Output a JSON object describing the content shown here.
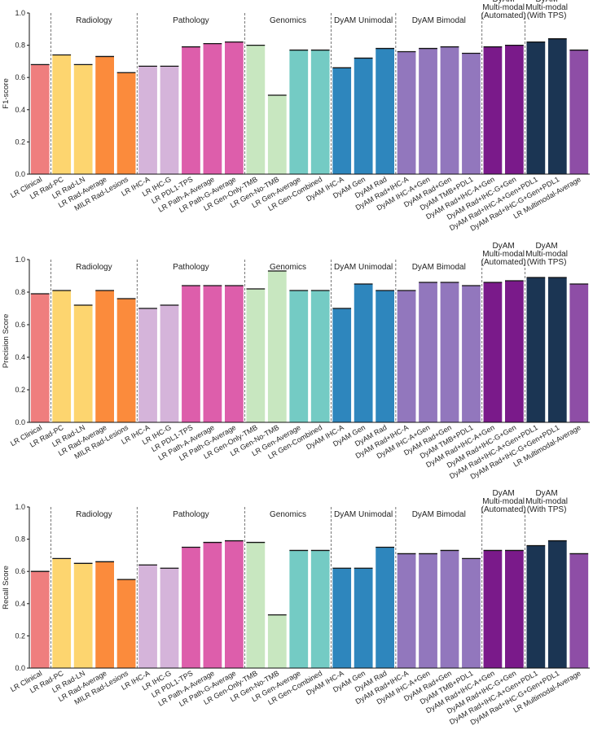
{
  "chart_data": [
    {
      "type": "bar",
      "ylabel": "F1-score",
      "ylim": [
        0,
        1.0
      ],
      "yticks": [
        "0.0",
        "0.2",
        "0.4",
        "0.6",
        "0.8",
        "1.0"
      ],
      "grid": false,
      "categories": [
        "LR Clinical",
        "LR Rad-PC",
        "LR Rad-LN",
        "LR Rad-Average",
        "MILR Rad-Lesions",
        "LR IHC-A",
        "LR IHC-G",
        "LR PDL1-TPS",
        "LR Path-A-Average",
        "LR Path-G-Average",
        "LR Gen-Only-TMB",
        "LR Gen-No-TMB",
        "LR Gen-Average",
        "LR Gen-Combined",
        "DyAM IHC-A",
        "DyAM Gen",
        "DyAM Rad",
        "DyAM Rad+IHC-A",
        "DyAM IHC-A+Gen",
        "DyAM Rad+Gen",
        "DyAM TMB+PDL1",
        "DyAM Rad+IHC-A+Gen",
        "DyAM Rad+IHC-G+Gen",
        "DyAM Rad+IHC-A+Gen+PDL1",
        "DyAM Rad+IHC-G+Gen+PDL1",
        "LR Multimodal-Average"
      ],
      "values": [
        0.68,
        0.74,
        0.68,
        0.73,
        0.63,
        0.67,
        0.67,
        0.79,
        0.81,
        0.82,
        0.8,
        0.49,
        0.77,
        0.77,
        0.66,
        0.72,
        0.78,
        0.76,
        0.78,
        0.79,
        0.75,
        0.79,
        0.8,
        0.82,
        0.84,
        0.77
      ]
    },
    {
      "type": "bar",
      "ylabel": "Precision Score",
      "ylim": [
        0,
        1.0
      ],
      "yticks": [
        "0.0",
        "0.2",
        "0.4",
        "0.6",
        "0.8",
        "1.0"
      ],
      "grid": false,
      "categories": [
        "LR Clinical",
        "LR Rad-PC",
        "LR Rad-LN",
        "LR Rad-Average",
        "MILR Rad-Lesions",
        "LR IHC-A",
        "LR IHC-G",
        "LR PDL1-TPS",
        "LR Path-A-Average",
        "LR Path-G-Average",
        "LR Gen-Only-TMB",
        "LR Gen-No-TMB",
        "LR Gen-Average",
        "LR Gen-Combined",
        "DyAM IHC-A",
        "DyAM Gen",
        "DyAM Rad",
        "DyAM Rad+IHC-A",
        "DyAM IHC-A+Gen",
        "DyAM Rad+Gen",
        "DyAM TMB+PDL1",
        "DyAM Rad+IHC-A+Gen",
        "DyAM Rad+IHC-G+Gen",
        "DyAM Rad+IHC-A+Gen+PDL1",
        "DyAM Rad+IHC-G+Gen+PDL1",
        "LR Multimodal-Average"
      ],
      "values": [
        0.79,
        0.81,
        0.72,
        0.81,
        0.76,
        0.7,
        0.72,
        0.84,
        0.84,
        0.84,
        0.82,
        0.93,
        0.81,
        0.81,
        0.7,
        0.85,
        0.81,
        0.81,
        0.86,
        0.86,
        0.84,
        0.86,
        0.87,
        0.89,
        0.89,
        0.85
      ]
    },
    {
      "type": "bar",
      "ylabel": "Recall Score",
      "ylim": [
        0,
        1.0
      ],
      "yticks": [
        "0.0",
        "0.2",
        "0.4",
        "0.6",
        "0.8",
        "1.0"
      ],
      "grid": false,
      "categories": [
        "LR Clinical",
        "LR Rad-PC",
        "LR Rad-LN",
        "LR Rad-Average",
        "MILR Rad-Lesions",
        "LR IHC-A",
        "LR IHC-G",
        "LR PDL1-TPS",
        "LR Path-A-Average",
        "LR Path-G-Average",
        "LR Gen-Only-TMB",
        "LR Gen-No-TMB",
        "LR Gen-Average",
        "LR Gen-Combined",
        "DyAM IHC-A",
        "DyAM Gen",
        "DyAM Rad",
        "DyAM Rad+IHC-A",
        "DyAM IHC-A+Gen",
        "DyAM Rad+Gen",
        "DyAM TMB+PDL1",
        "DyAM Rad+IHC-A+Gen",
        "DyAM Rad+IHC-G+Gen",
        "DyAM Rad+IHC-A+Gen+PDL1",
        "DyAM Rad+IHC-G+Gen+PDL1",
        "LR Multimodal-Average"
      ],
      "values": [
        0.6,
        0.68,
        0.65,
        0.66,
        0.55,
        0.64,
        0.62,
        0.75,
        0.78,
        0.79,
        0.78,
        0.33,
        0.73,
        0.73,
        0.62,
        0.62,
        0.75,
        0.71,
        0.71,
        0.73,
        0.68,
        0.73,
        0.73,
        0.76,
        0.79,
        0.71
      ]
    }
  ],
  "bar_colors": [
    "#ef7e7e",
    "#fdd56f",
    "#fdd56f",
    "#fb8b3c",
    "#fb8b3c",
    "#d5b4da",
    "#d5b4da",
    "#dd5eab",
    "#dd5eab",
    "#dd5eab",
    "#c8e7c0",
    "#c8e7c0",
    "#74cbc4",
    "#74cbc4",
    "#2e86bd",
    "#2e86bd",
    "#2e86bd",
    "#9277bd",
    "#9277bd",
    "#9277bd",
    "#9277bd",
    "#7a1a8a",
    "#7a1a8a",
    "#1b3553",
    "#1b3553",
    "#8e4ea6"
  ],
  "groups": [
    {
      "lines": [
        "Radiology"
      ],
      "start": 1,
      "end": 4
    },
    {
      "lines": [
        "Pathology"
      ],
      "start": 5,
      "end": 9
    },
    {
      "lines": [
        "Genomics"
      ],
      "start": 10,
      "end": 13
    },
    {
      "lines": [
        "DyAM Unimodal"
      ],
      "start": 14,
      "end": 16
    },
    {
      "lines": [
        "DyAM Bimodal"
      ],
      "start": 17,
      "end": 20
    },
    {
      "lines": [
        "DyAM",
        "Multi-modal",
        "(Automated)"
      ],
      "start": 21,
      "end": 22
    },
    {
      "lines": [
        "DyAM",
        "Multi-modal",
        "(With TPS)"
      ],
      "start": 23,
      "end": 24
    }
  ]
}
